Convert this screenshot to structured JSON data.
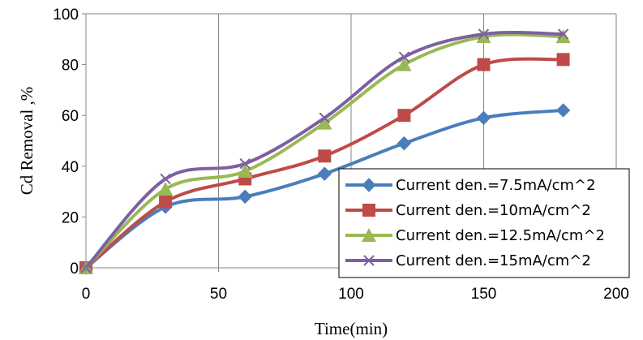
{
  "chart_data": {
    "type": "line",
    "title": "",
    "xlabel": "Time(min)",
    "ylabel": "Cd  Removal ,%",
    "xlim": [
      0,
      200
    ],
    "ylim": [
      0,
      100
    ],
    "xticks": [
      "0",
      "50",
      "100",
      "150",
      "200"
    ],
    "yticks": [
      "0",
      "20",
      "40",
      "60",
      "80",
      "100"
    ],
    "grid": "vertical",
    "legend_position": "bottom-right",
    "x": [
      0,
      30,
      60,
      90,
      120,
      150,
      180
    ],
    "series": [
      {
        "name": "Current den.=7.5mA/cm^2",
        "color": "#4A7EBB",
        "marker": "diamond",
        "values": [
          0,
          24,
          28,
          37,
          49,
          59,
          62
        ]
      },
      {
        "name": "Current den.=10mA/cm^2",
        "color": "#BE4B48",
        "marker": "square",
        "values": [
          0,
          26,
          35,
          44,
          60,
          80,
          82
        ]
      },
      {
        "name": "Current den.=12.5mA/cm^2",
        "color": "#98B954",
        "marker": "triangle",
        "values": [
          0,
          31,
          38,
          57,
          80,
          91,
          91
        ]
      },
      {
        "name": "Current den.=15mA/cm^2",
        "color": "#7D60A0",
        "marker": "x",
        "values": [
          0,
          35,
          41,
          59,
          83,
          92,
          92
        ]
      }
    ]
  }
}
